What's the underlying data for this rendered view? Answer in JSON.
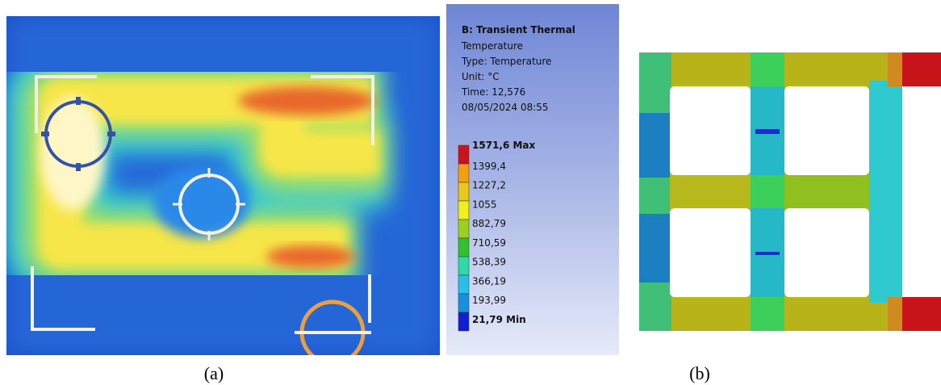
{
  "panel_a": {
    "caption": "(a)"
  },
  "legend": {
    "title": "B: Transient Thermal",
    "lines": [
      "Temperature",
      "Type: Temperature",
      "Unit: °C",
      "Time: 12,576",
      "08/05/2024 08:55"
    ],
    "entries": [
      "1571,6 Max",
      "1399,4",
      "1227,2",
      "1055",
      "882,79",
      "710,59",
      "538,39",
      "366,19",
      "193,99",
      "21,79 Min"
    ]
  },
  "panel_b": {
    "caption": "(b)"
  }
}
